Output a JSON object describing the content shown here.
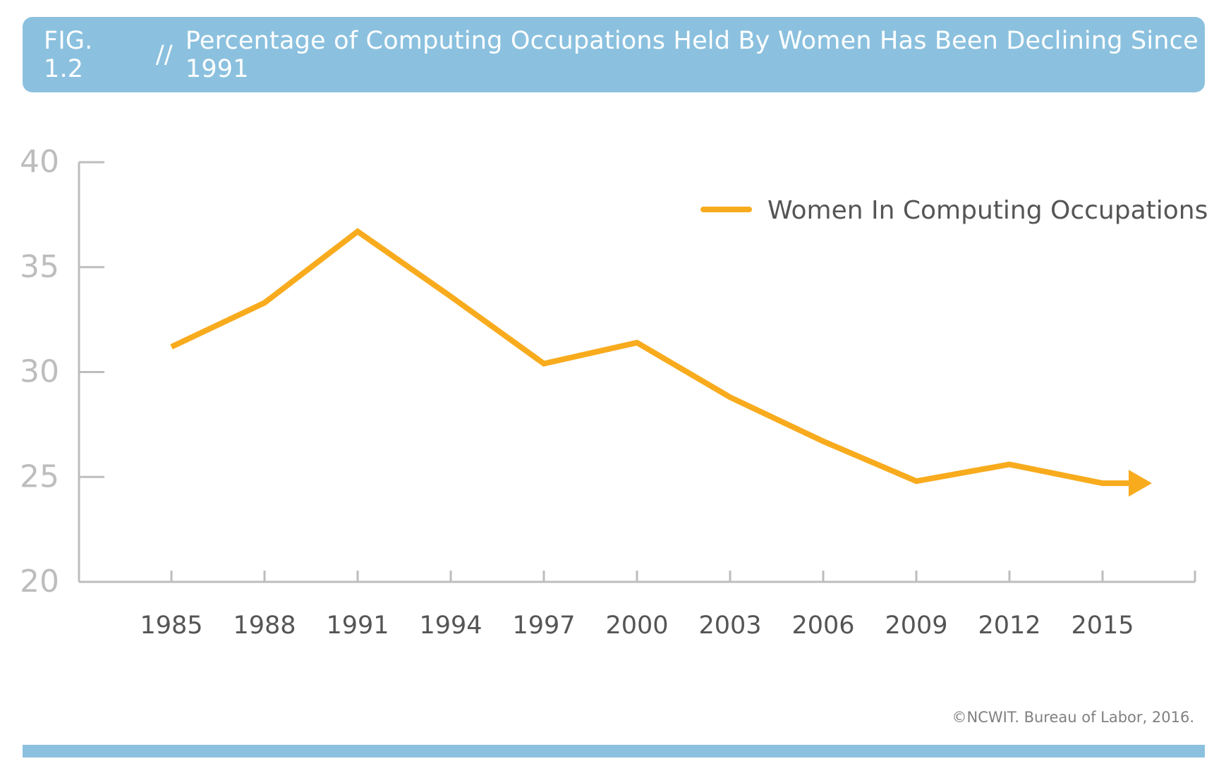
{
  "header": {
    "fig_label": "FIG. 1.2",
    "separator": "//",
    "title": "Percentage of Computing Occupations Held By Women Has Been Declining Since 1991"
  },
  "footer": {
    "source": "©NCWIT. Bureau of Labor, 2016."
  },
  "colors": {
    "banner": "#8bc1df",
    "line": "#f8ab1d",
    "axis": "#bdbdbd",
    "y_tick_text": "#bdbdbd",
    "x_tick_text": "#555555",
    "legend_text": "#555555"
  },
  "chart_data": {
    "type": "line",
    "x": [
      "1985",
      "1988",
      "1991",
      "1994",
      "1997",
      "2000",
      "2003",
      "2006",
      "2009",
      "2012",
      "2015",
      "2017"
    ],
    "x_tick_labels": [
      "1985",
      "1988",
      "1991",
      "1994",
      "1997",
      "2000",
      "2003",
      "2006",
      "2009",
      "2012",
      "2015"
    ],
    "series": [
      {
        "name": "Women In Computing Occupations",
        "values": [
          31.2,
          33.3,
          36.7,
          33.6,
          30.4,
          31.4,
          28.8,
          26.7,
          24.8,
          25.6,
          24.7,
          24.7
        ]
      }
    ],
    "y_ticks": [
      20,
      25,
      30,
      35,
      40
    ],
    "ylim": [
      20,
      40
    ],
    "end_marker": "arrow",
    "legend_position": "top-right",
    "grid": false
  }
}
